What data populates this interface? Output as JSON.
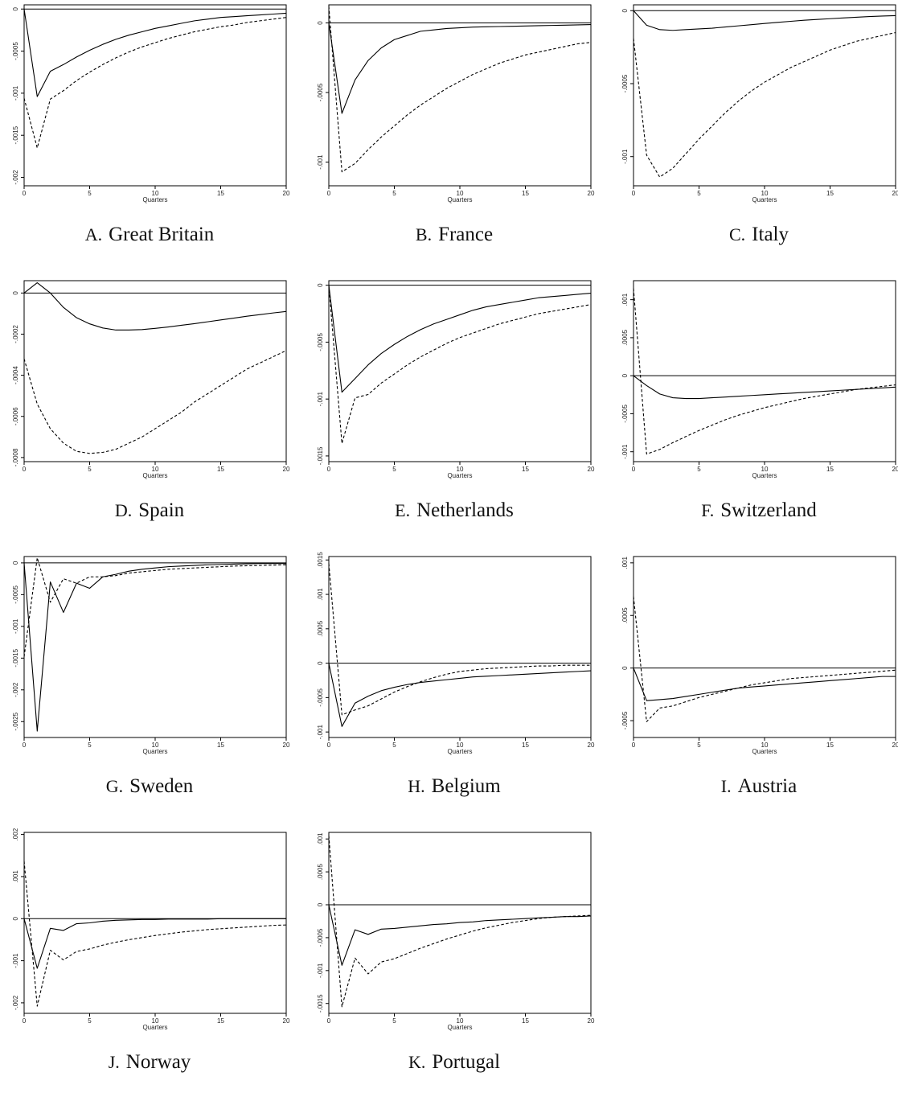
{
  "figure": {
    "common": {
      "xlabel": "Quarters",
      "xticks": [
        0,
        5,
        10,
        15,
        20
      ],
      "xlim": [
        0,
        20
      ],
      "series_styles": [
        {
          "line": "solid",
          "color": "#000000"
        },
        {
          "line": "dashed",
          "color": "#000000"
        }
      ]
    }
  },
  "chart_data": [
    {
      "type": "line",
      "letter": "A.",
      "title": "Great Britain",
      "xlabel": "Quarters",
      "ylim": [
        -0.0021,
        5e-05
      ],
      "yticks": [
        0,
        -0.0005,
        -0.001,
        -0.0015,
        -0.002
      ],
      "ytick_labels": [
        "0",
        "-.0005",
        "-.001",
        "-.0015",
        "-.002"
      ],
      "x": [
        0,
        1,
        2,
        3,
        4,
        5,
        6,
        7,
        8,
        9,
        10,
        11,
        12,
        13,
        14,
        15,
        16,
        17,
        18,
        19,
        20
      ],
      "series": [
        {
          "values": [
            0,
            -0.00104,
            -0.00074,
            -0.00066,
            -0.00057,
            -0.00049,
            -0.00042,
            -0.00036,
            -0.00031,
            -0.00027,
            -0.00023,
            -0.0002,
            -0.00017,
            -0.00014,
            -0.00012,
            -0.0001,
            -9e-05,
            -8e-05,
            -7e-05,
            -6e-05,
            -5e-05
          ]
        },
        {
          "values": [
            -0.00106,
            -0.00165,
            -0.00107,
            -0.00097,
            -0.00085,
            -0.00075,
            -0.00066,
            -0.00058,
            -0.00051,
            -0.00045,
            -0.0004,
            -0.00035,
            -0.00031,
            -0.00027,
            -0.00024,
            -0.00021,
            -0.00019,
            -0.00016,
            -0.00014,
            -0.00012,
            -0.0001
          ]
        }
      ]
    },
    {
      "type": "line",
      "letter": "B.",
      "title": "France",
      "xlabel": "Quarters",
      "ylim": [
        -0.00117,
        0.00013
      ],
      "yticks": [
        0,
        -0.0005,
        -0.001
      ],
      "ytick_labels": [
        "0",
        "-.0005",
        "-.001"
      ],
      "x": [
        0,
        1,
        2,
        3,
        4,
        5,
        6,
        7,
        8,
        9,
        10,
        11,
        12,
        13,
        14,
        15,
        16,
        17,
        18,
        19,
        20
      ],
      "series": [
        {
          "values": [
            0,
            -0.00065,
            -0.00041,
            -0.00027,
            -0.00018,
            -0.00012,
            -9e-05,
            -6e-05,
            -5e-05,
            -4e-05,
            -3.5e-05,
            -3e-05,
            -2.8e-05,
            -2.6e-05,
            -2.4e-05,
            -2.2e-05,
            -2e-05,
            -1.8e-05,
            -1.6e-05,
            -1.4e-05,
            -1.2e-05
          ]
        },
        {
          "values": [
            0.00012,
            -0.00107,
            -0.00101,
            -0.00091,
            -0.00082,
            -0.00074,
            -0.00066,
            -0.00059,
            -0.00053,
            -0.00047,
            -0.00042,
            -0.00037,
            -0.00033,
            -0.00029,
            -0.00026,
            -0.00023,
            -0.00021,
            -0.00019,
            -0.00017,
            -0.00015,
            -0.00014
          ]
        }
      ]
    },
    {
      "type": "line",
      "letter": "C.",
      "title": "Italy",
      "xlabel": "Quarters",
      "ylim": [
        -0.0012,
        4e-05
      ],
      "yticks": [
        0,
        -0.0005,
        -0.001
      ],
      "ytick_labels": [
        "0",
        "-.0005",
        "-.001"
      ],
      "x": [
        0,
        1,
        2,
        3,
        4,
        5,
        6,
        7,
        8,
        9,
        10,
        11,
        12,
        13,
        14,
        15,
        16,
        17,
        18,
        19,
        20
      ],
      "series": [
        {
          "values": [
            0,
            -0.0001,
            -0.00013,
            -0.000135,
            -0.00013,
            -0.000125,
            -0.00012,
            -0.000112,
            -0.000104,
            -9.6e-05,
            -8.8e-05,
            -8e-05,
            -7.3e-05,
            -6.6e-05,
            -6e-05,
            -5.5e-05,
            -5e-05,
            -4.5e-05,
            -4e-05,
            -3.7e-05,
            -3.4e-05
          ]
        },
        {
          "values": [
            -0.00019,
            -0.00099,
            -0.00114,
            -0.00108,
            -0.00098,
            -0.00088,
            -0.00079,
            -0.0007,
            -0.00062,
            -0.00055,
            -0.00049,
            -0.00044,
            -0.00039,
            -0.00035,
            -0.00031,
            -0.00027,
            -0.00024,
            -0.00021,
            -0.00019,
            -0.00017,
            -0.00015
          ]
        }
      ]
    },
    {
      "type": "line",
      "letter": "D.",
      "title": "Spain",
      "xlabel": "Quarters",
      "ylim": [
        -0.00082,
        6e-05
      ],
      "yticks": [
        0,
        -0.0002,
        -0.0004,
        -0.0006,
        -0.0008
      ],
      "ytick_labels": [
        "0",
        "-.0002",
        "-.0004",
        "-.0006",
        "-.0008"
      ],
      "x": [
        0,
        1,
        2,
        3,
        4,
        5,
        6,
        7,
        8,
        9,
        10,
        11,
        12,
        13,
        14,
        15,
        16,
        17,
        18,
        19,
        20
      ],
      "series": [
        {
          "values": [
            0,
            5e-05,
            0.0,
            -7e-05,
            -0.00012,
            -0.00015,
            -0.00017,
            -0.00018,
            -0.00018,
            -0.000178,
            -0.000172,
            -0.000165,
            -0.000157,
            -0.000149,
            -0.00014,
            -0.000131,
            -0.000122,
            -0.000113,
            -0.000105,
            -9.7e-05,
            -9e-05
          ]
        },
        {
          "values": [
            -0.00032,
            -0.00054,
            -0.00066,
            -0.00073,
            -0.00077,
            -0.00078,
            -0.000775,
            -0.00076,
            -0.00073,
            -0.0007,
            -0.00066,
            -0.00062,
            -0.00058,
            -0.00053,
            -0.00049,
            -0.00045,
            -0.00041,
            -0.00037,
            -0.00034,
            -0.00031,
            -0.00028
          ]
        }
      ]
    },
    {
      "type": "line",
      "letter": "E.",
      "title": "Netherlands",
      "xlabel": "Quarters",
      "ylim": [
        -0.00155,
        4e-05
      ],
      "yticks": [
        0,
        -0.0005,
        -0.001,
        -0.0015
      ],
      "ytick_labels": [
        "0",
        "-.0005",
        "-.001",
        "-.0015"
      ],
      "x": [
        0,
        1,
        2,
        3,
        4,
        5,
        6,
        7,
        8,
        9,
        10,
        11,
        12,
        13,
        14,
        15,
        16,
        17,
        18,
        19,
        20
      ],
      "series": [
        {
          "values": [
            0,
            -0.00094,
            -0.00082,
            -0.0007,
            -0.0006,
            -0.00052,
            -0.00045,
            -0.00039,
            -0.00034,
            -0.0003,
            -0.00026,
            -0.00022,
            -0.00019,
            -0.00017,
            -0.00015,
            -0.00013,
            -0.00011,
            -0.0001,
            -9e-05,
            -8e-05,
            -7e-05
          ]
        },
        {
          "values": [
            0,
            -0.00139,
            -0.00099,
            -0.00096,
            -0.00086,
            -0.00078,
            -0.0007,
            -0.00063,
            -0.00057,
            -0.00051,
            -0.00046,
            -0.00042,
            -0.00038,
            -0.00034,
            -0.00031,
            -0.00028,
            -0.00025,
            -0.00023,
            -0.00021,
            -0.00019,
            -0.00017
          ]
        }
      ]
    },
    {
      "type": "line",
      "letter": "F.",
      "title": "Switzerland",
      "xlabel": "Quarters",
      "ylim": [
        -0.00113,
        0.00125
      ],
      "yticks": [
        0.001,
        0.0005,
        0,
        -0.0005,
        -0.001
      ],
      "ytick_labels": [
        ".001",
        ".0005",
        "0",
        "-.0005",
        "-.001"
      ],
      "x": [
        0,
        1,
        2,
        3,
        4,
        5,
        6,
        7,
        8,
        9,
        10,
        11,
        12,
        13,
        14,
        15,
        16,
        17,
        18,
        19,
        20
      ],
      "series": [
        {
          "values": [
            0,
            -0.00013,
            -0.00024,
            -0.00029,
            -0.0003,
            -0.0003,
            -0.00029,
            -0.00028,
            -0.00027,
            -0.00026,
            -0.00025,
            -0.00024,
            -0.00023,
            -0.00022,
            -0.00021,
            -0.0002,
            -0.00019,
            -0.00018,
            -0.00017,
            -0.00016,
            -0.00015
          ]
        },
        {
          "values": [
            0.00115,
            -0.00103,
            -0.00097,
            -0.00088,
            -0.0008,
            -0.00072,
            -0.00065,
            -0.00058,
            -0.00052,
            -0.00047,
            -0.00042,
            -0.00038,
            -0.00034,
            -0.0003,
            -0.00027,
            -0.00024,
            -0.00021,
            -0.00018,
            -0.00016,
            -0.00014,
            -0.00012
          ]
        }
      ]
    },
    {
      "type": "line",
      "letter": "G.",
      "title": "Sweden",
      "xlabel": "Quarters",
      "ylim": [
        -0.00275,
        0.0001
      ],
      "yticks": [
        0,
        -0.0005,
        -0.001,
        -0.0015,
        -0.002,
        -0.0025
      ],
      "ytick_labels": [
        "0",
        "-.0005",
        "-.001",
        "-.0015",
        "-.002",
        "-.0025"
      ],
      "x": [
        0,
        1,
        2,
        3,
        4,
        5,
        6,
        7,
        8,
        9,
        10,
        11,
        12,
        13,
        14,
        15,
        16,
        17,
        18,
        19,
        20
      ],
      "series": [
        {
          "values": [
            0,
            -0.00265,
            -0.0003,
            -0.00078,
            -0.00032,
            -0.0004,
            -0.00022,
            -0.00018,
            -0.00013,
            -0.0001,
            -8e-05,
            -6e-05,
            -5e-05,
            -4e-05,
            -3e-05,
            -2.5e-05,
            -2e-05,
            -1.5e-05,
            -1e-05,
            -1e-05,
            -1e-05
          ]
        },
        {
          "values": [
            -0.00148,
            8e-05,
            -0.00062,
            -0.00025,
            -0.00032,
            -0.00022,
            -0.00022,
            -0.0002,
            -0.00016,
            -0.00014,
            -0.00012,
            -0.0001,
            -9e-05,
            -8e-05,
            -7e-05,
            -6e-05,
            -5e-05,
            -4.5e-05,
            -4e-05,
            -3.5e-05,
            -3e-05
          ]
        }
      ]
    },
    {
      "type": "line",
      "letter": "H.",
      "title": "Belgium",
      "xlabel": "Quarters",
      "ylim": [
        -0.00108,
        0.00155
      ],
      "yticks": [
        0.0015,
        0.001,
        0.0005,
        0,
        -0.0005,
        -0.001
      ],
      "ytick_labels": [
        ".0015",
        ".001",
        ".0005",
        "0",
        "-.0005",
        "-.001"
      ],
      "x": [
        0,
        1,
        2,
        3,
        4,
        5,
        6,
        7,
        8,
        9,
        10,
        11,
        12,
        13,
        14,
        15,
        16,
        17,
        18,
        19,
        20
      ],
      "series": [
        {
          "values": [
            0,
            -0.00092,
            -0.00058,
            -0.00048,
            -0.0004,
            -0.00035,
            -0.00031,
            -0.00028,
            -0.00026,
            -0.00024,
            -0.00022,
            -0.0002,
            -0.00019,
            -0.00018,
            -0.00017,
            -0.00016,
            -0.00015,
            -0.00014,
            -0.00013,
            -0.00012,
            -0.00011
          ]
        },
        {
          "values": [
            0.00145,
            -0.00075,
            -0.00068,
            -0.00062,
            -0.00052,
            -0.00042,
            -0.00034,
            -0.00027,
            -0.00021,
            -0.00016,
            -0.00012,
            -0.0001,
            -8e-05,
            -7e-05,
            -6e-05,
            -5e-05,
            -4e-05,
            -4e-05,
            -3e-05,
            -3e-05,
            -3e-05
          ]
        }
      ]
    },
    {
      "type": "line",
      "letter": "I.",
      "title": "Austria",
      "xlabel": "Quarters",
      "ylim": [
        -0.00066,
        0.00106
      ],
      "yticks": [
        0.001,
        0.0005,
        0,
        -0.0005
      ],
      "ytick_labels": [
        ".001",
        ".0005",
        "0",
        "-.0005"
      ],
      "x": [
        0,
        1,
        2,
        3,
        4,
        5,
        6,
        7,
        8,
        9,
        10,
        11,
        12,
        13,
        14,
        15,
        16,
        17,
        18,
        19,
        20
      ],
      "series": [
        {
          "values": [
            0,
            -0.00031,
            -0.0003,
            -0.00029,
            -0.00027,
            -0.00025,
            -0.00023,
            -0.00021,
            -0.00019,
            -0.00018,
            -0.00017,
            -0.00016,
            -0.00015,
            -0.00014,
            -0.00013,
            -0.00012,
            -0.00011,
            -0.0001,
            -9e-05,
            -8e-05,
            -8e-05
          ]
        },
        {
          "values": [
            0.00068,
            -0.00051,
            -0.00038,
            -0.00036,
            -0.00032,
            -0.00028,
            -0.00025,
            -0.00022,
            -0.00019,
            -0.00016,
            -0.00014,
            -0.00012,
            -0.0001,
            -9e-05,
            -8e-05,
            -7e-05,
            -6e-05,
            -5e-05,
            -4e-05,
            -3e-05,
            -2e-05
          ]
        }
      ]
    },
    {
      "type": "line",
      "letter": "J.",
      "title": "Norway",
      "xlabel": "Quarters",
      "ylim": [
        -0.00225,
        0.00205
      ],
      "yticks": [
        0.002,
        0.001,
        0,
        -0.001,
        -0.002
      ],
      "ytick_labels": [
        ".002",
        ".001",
        "0",
        "-.001",
        "-.002"
      ],
      "x": [
        0,
        1,
        2,
        3,
        4,
        5,
        6,
        7,
        8,
        9,
        10,
        11,
        12,
        13,
        14,
        15,
        16,
        17,
        18,
        19,
        20
      ],
      "series": [
        {
          "values": [
            0,
            -0.00118,
            -0.00023,
            -0.00028,
            -0.00012,
            -0.0001,
            -6e-05,
            -4e-05,
            -3e-05,
            -2e-05,
            -2e-05,
            -1e-05,
            -1e-05,
            -1e-05,
            -1e-05,
            0,
            0,
            0,
            0,
            0,
            0
          ]
        },
        {
          "values": [
            0.00137,
            -0.00208,
            -0.00075,
            -0.00098,
            -0.00078,
            -0.00072,
            -0.00063,
            -0.00056,
            -0.0005,
            -0.00045,
            -0.0004,
            -0.00036,
            -0.00032,
            -0.00029,
            -0.00026,
            -0.00024,
            -0.00022,
            -0.0002,
            -0.00018,
            -0.00016,
            -0.00015
          ]
        }
      ]
    },
    {
      "type": "line",
      "letter": "K.",
      "title": "Portugal",
      "xlabel": "Quarters",
      "ylim": [
        -0.00165,
        0.0011
      ],
      "yticks": [
        0.001,
        0.0005,
        0,
        -0.0005,
        -0.001,
        -0.0015
      ],
      "ytick_labels": [
        ".001",
        ".0005",
        "0",
        "-.0005",
        "-.001",
        "-.0015"
      ],
      "x": [
        0,
        1,
        2,
        3,
        4,
        5,
        6,
        7,
        8,
        9,
        10,
        11,
        12,
        13,
        14,
        15,
        16,
        17,
        18,
        19,
        20
      ],
      "series": [
        {
          "values": [
            0,
            -0.00092,
            -0.00038,
            -0.00045,
            -0.00037,
            -0.00036,
            -0.00034,
            -0.00032,
            -0.0003,
            -0.00029,
            -0.00027,
            -0.00026,
            -0.00024,
            -0.00023,
            -0.00022,
            -0.00021,
            -0.0002,
            -0.00019,
            -0.00018,
            -0.00018,
            -0.00017
          ]
        },
        {
          "values": [
            0.00105,
            -0.00155,
            -0.00081,
            -0.00105,
            -0.00087,
            -0.00082,
            -0.00074,
            -0.00066,
            -0.00059,
            -0.00052,
            -0.00046,
            -0.0004,
            -0.00035,
            -0.00031,
            -0.00027,
            -0.00024,
            -0.00021,
            -0.00019,
            -0.00018,
            -0.00017,
            -0.00016
          ]
        }
      ]
    }
  ]
}
